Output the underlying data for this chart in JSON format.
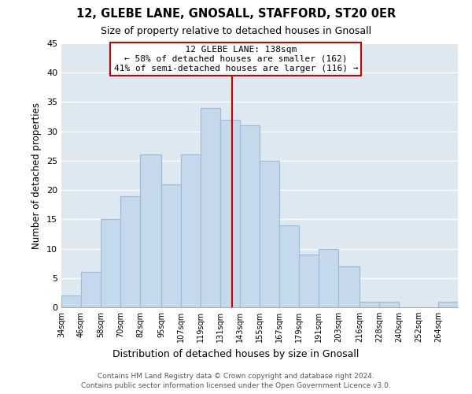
{
  "title": "12, GLEBE LANE, GNOSALL, STAFFORD, ST20 0ER",
  "subtitle": "Size of property relative to detached houses in Gnosall",
  "xlabel": "Distribution of detached houses by size in Gnosall",
  "ylabel": "Number of detached properties",
  "bar_color": "#c5d8ec",
  "bar_edge_color": "#9abcd6",
  "background_color": "#dde8f0",
  "plot_bg_color": "#dde8f0",
  "grid_color": "#ffffff",
  "annotation_box_edge": "#cc0000",
  "annotation_line_color": "#cc0000",
  "annotation_title": "12 GLEBE LANE: 138sqm",
  "annotation_line1": "← 58% of detached houses are smaller (162)",
  "annotation_line2": "41% of semi-detached houses are larger (116) →",
  "subject_value": 138,
  "ylim": [
    0,
    45
  ],
  "yticks": [
    0,
    5,
    10,
    15,
    20,
    25,
    30,
    35,
    40,
    45
  ],
  "bins": [
    34,
    46,
    58,
    70,
    82,
    95,
    107,
    119,
    131,
    143,
    155,
    167,
    179,
    191,
    203,
    216,
    228,
    240,
    252,
    264,
    276
  ],
  "counts": [
    2,
    6,
    15,
    19,
    26,
    21,
    26,
    34,
    32,
    31,
    25,
    14,
    9,
    10,
    7,
    1,
    1,
    0,
    0,
    1
  ],
  "footer_line1": "Contains HM Land Registry data © Crown copyright and database right 2024.",
  "footer_line2": "Contains public sector information licensed under the Open Government Licence v3.0."
}
